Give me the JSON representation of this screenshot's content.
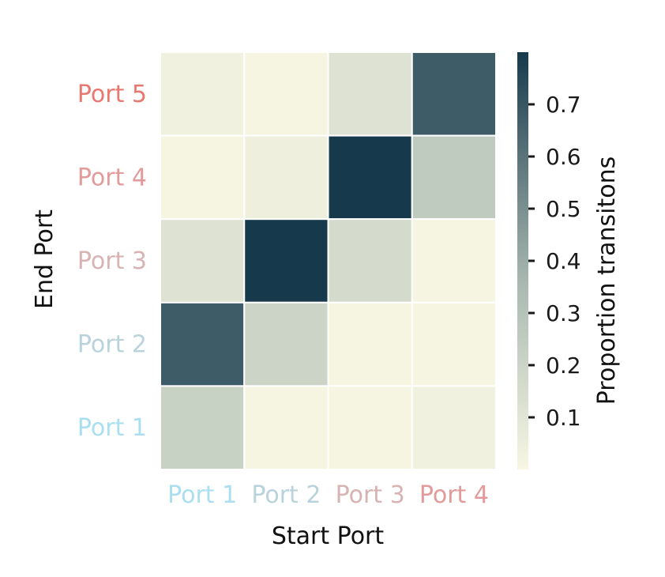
{
  "chart_data": {
    "type": "heatmap",
    "x_categories": [
      "Port 1",
      "Port 2",
      "Port 3",
      "Port 4"
    ],
    "y_categories": [
      "Port 5",
      "Port 4",
      "Port 3",
      "Port 2",
      "Port 1"
    ],
    "xlabel": "Start Port",
    "ylabel": "End Port",
    "x_label_colors": [
      "#a9dff0",
      "#b8d3dc",
      "#d8b3b3",
      "#e29a9a"
    ],
    "y_label_colors": [
      "#e87870",
      "#e29a9a",
      "#d8b3b3",
      "#b8d3dc",
      "#a9dff0"
    ],
    "values": [
      [
        0.03,
        0.01,
        0.12,
        0.68
      ],
      [
        0.01,
        0.04,
        0.8,
        0.25
      ],
      [
        0.12,
        0.8,
        0.16,
        0.01
      ],
      [
        0.68,
        0.2,
        0.01,
        0.01
      ],
      [
        0.22,
        0.01,
        0.01,
        0.03
      ]
    ],
    "colorbar": {
      "label": "Proportion transitons",
      "ticks": [
        0.1,
        0.2,
        0.3,
        0.4,
        0.5,
        0.6,
        0.7
      ],
      "tick_labels": [
        "0.1",
        "0.2",
        "0.3",
        "0.4",
        "0.5",
        "0.6",
        "0.7"
      ],
      "vmin": 0.0,
      "vmax": 0.8
    },
    "colors": {
      "low": "#f7f7e3",
      "mid": "#a8b8b0",
      "high": "#163a4c",
      "cell_border": "#ffffff"
    }
  }
}
